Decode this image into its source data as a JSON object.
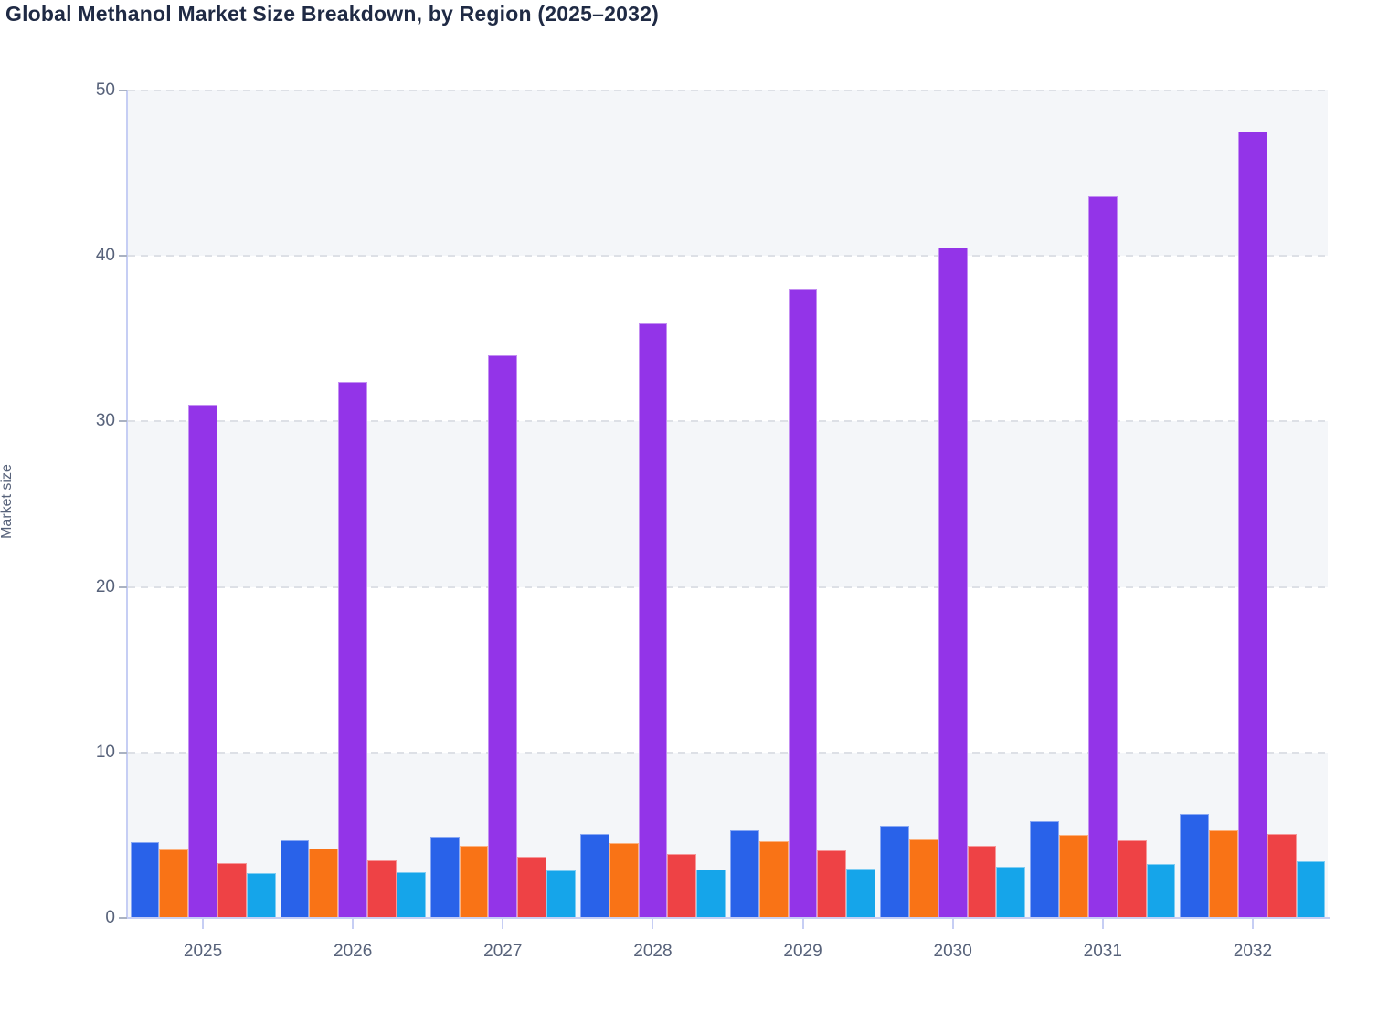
{
  "title": "Global Methanol Market Size Breakdown, by Region (2025–2032)",
  "chart_data": {
    "type": "bar",
    "title": "Global Methanol Market Size Breakdown, by Region (2025–2032)",
    "xlabel": "",
    "ylabel": "Market size",
    "ylim": [
      0,
      50
    ],
    "yticks": [
      0,
      10,
      20,
      30,
      40,
      50
    ],
    "categories": [
      "2025",
      "2026",
      "2027",
      "2028",
      "2029",
      "2030",
      "2031",
      "2032"
    ],
    "series": [
      {
        "name": "blue",
        "color": "#2962e9",
        "values": [
          4.6,
          4.7,
          4.9,
          5.05,
          5.3,
          5.6,
          5.85,
          6.3
        ]
      },
      {
        "name": "orange",
        "color": "#f97316",
        "values": [
          4.15,
          4.2,
          4.35,
          4.5,
          4.65,
          4.75,
          5.0,
          5.3
        ]
      },
      {
        "name": "purple",
        "color": "#9334e8",
        "values": [
          31.0,
          32.4,
          34.0,
          35.9,
          38.0,
          40.5,
          43.6,
          47.5
        ]
      },
      {
        "name": "red",
        "color": "#ee4245",
        "values": [
          3.3,
          3.5,
          3.7,
          3.85,
          4.1,
          4.35,
          4.7,
          5.1
        ]
      },
      {
        "name": "cyan",
        "color": "#15a5ea",
        "values": [
          2.7,
          2.75,
          2.85,
          2.9,
          3.0,
          3.1,
          3.25,
          3.4
        ]
      }
    ],
    "legend": "none",
    "grid": "horizontal-dashed",
    "band_fill": "#f4f6f9",
    "axis_line_color": "#c6cef4",
    "tick_text_color": "#57627a",
    "title_color": "#1f2a44"
  }
}
